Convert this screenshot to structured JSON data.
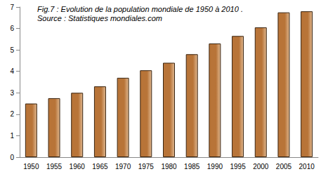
{
  "chart_data": {
    "type": "bar",
    "title": "Fig.7 : Evolution de la population mondiale de 1950 à 2010 .",
    "subtitle": "Source : Statistiques mondiales.com",
    "categories": [
      "1950",
      "1955",
      "1960",
      "1965",
      "1970",
      "1975",
      "1980",
      "1985",
      "1990",
      "1995",
      "2000",
      "2005",
      "2010"
    ],
    "values": [
      2.5,
      2.75,
      3.0,
      3.3,
      3.7,
      4.05,
      4.4,
      4.8,
      5.3,
      5.65,
      6.05,
      6.75,
      6.8
    ],
    "color": "#b87438",
    "ylim": [
      0,
      7
    ],
    "yticks": [
      0,
      1,
      2,
      3,
      4,
      5,
      6,
      7
    ],
    "grid": false
  }
}
